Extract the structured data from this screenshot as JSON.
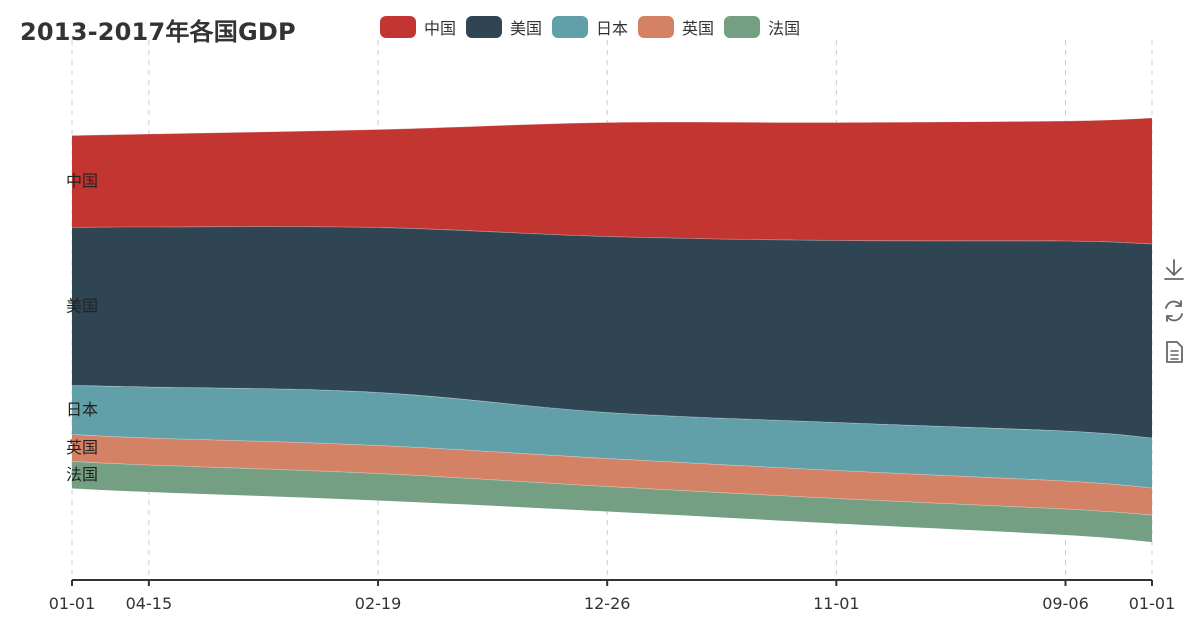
{
  "title": "2013-2017年各国GDP",
  "legend": [
    {
      "label": "中国",
      "color": "#c23531"
    },
    {
      "label": "美国",
      "color": "#2f4554"
    },
    {
      "label": "日本",
      "color": "#61a0a8"
    },
    {
      "label": "英国",
      "color": "#d48265"
    },
    {
      "label": "法国",
      "color": "#749f83"
    }
  ],
  "toolbox": [
    {
      "name": "download-icon"
    },
    {
      "name": "refresh-icon"
    },
    {
      "name": "document-icon"
    }
  ],
  "chart_data": {
    "type": "area",
    "title": "2013-2017年各国GDP",
    "xlabel": "",
    "ylabel": "",
    "grid": true,
    "legend_position": "top",
    "x": [
      "2013-01-01",
      "2013-04-15",
      "2014-02-19",
      "2014-12-26",
      "2015-11-01",
      "2016-09-06",
      "2017-01-01"
    ],
    "x_tick_labels": [
      "01-01",
      "04-15",
      "02-19",
      "12-26",
      "11-01",
      "09-06",
      "01-01"
    ],
    "series": [
      {
        "name": "中国",
        "color": "#c23531",
        "values": [
          92,
          93,
          98,
          114,
          118,
          120,
          126
        ]
      },
      {
        "name": "美国",
        "color": "#2f4554",
        "values": [
          158,
          160,
          165,
          176,
          182,
          190,
          194
        ]
      },
      {
        "name": "日本",
        "color": "#61a0a8",
        "values": [
          49,
          51,
          53,
          46,
          48,
          50,
          50
        ]
      },
      {
        "name": "英国",
        "color": "#d48265",
        "values": [
          27,
          27,
          28,
          28,
          28,
          28,
          27
        ]
      },
      {
        "name": "法国",
        "color": "#749f83",
        "values": [
          27,
          27,
          27,
          25,
          25,
          26,
          27
        ]
      }
    ]
  }
}
